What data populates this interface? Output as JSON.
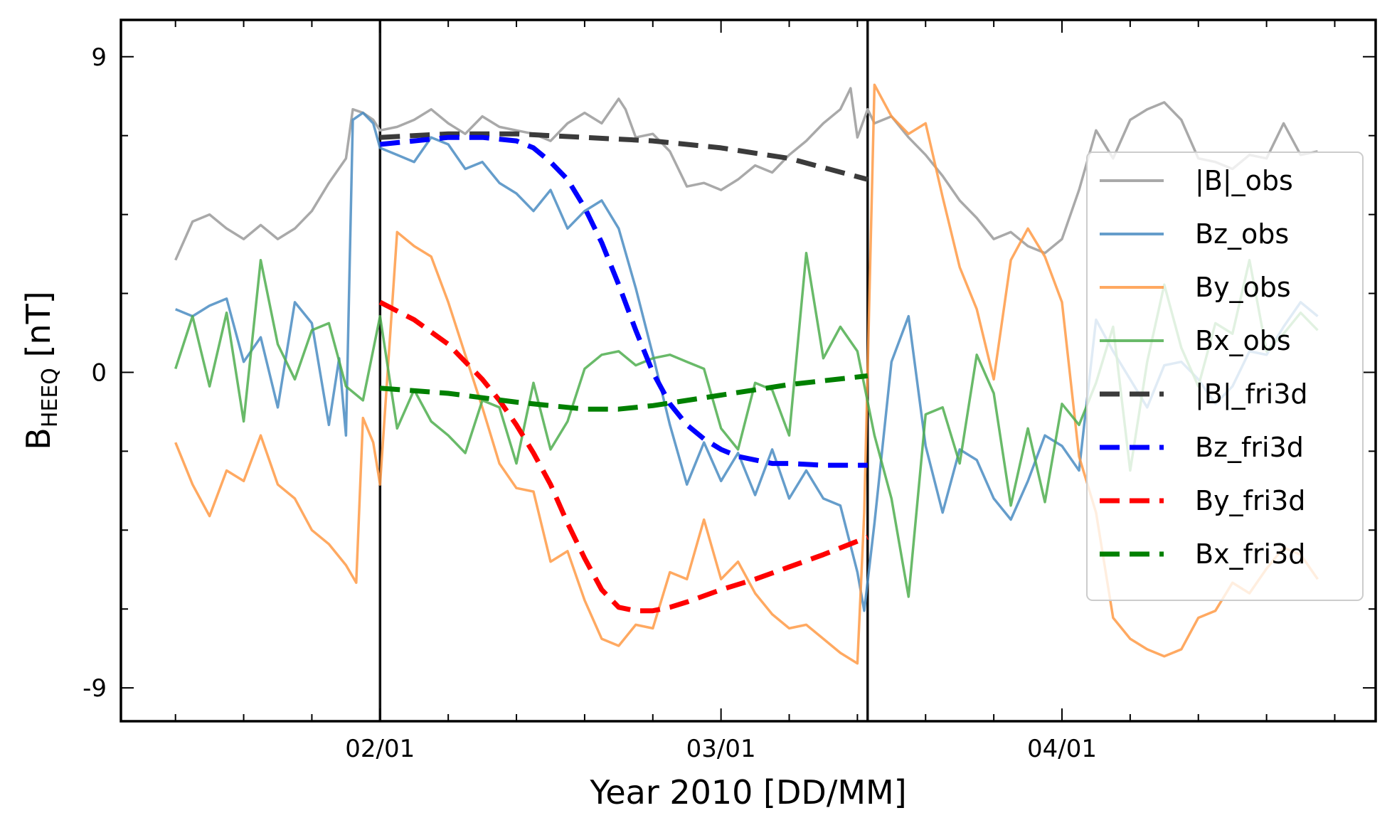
{
  "chart_data": {
    "type": "line",
    "title": "",
    "xlabel": "Year 2010 [DD/MM]",
    "ylabel": {
      "main": "B",
      "subscript": "HEEQ",
      "unit": " [nT]"
    },
    "x_unit": "day offset from 02/01 (0 = 02/01, 1 = 03/01, 2 = 04/01)",
    "xlim": [
      -0.76,
      2.92
    ],
    "ylim": [
      -9.95,
      10.05
    ],
    "x_ticks": [
      {
        "value": 0,
        "label": "02/01"
      },
      {
        "value": 1,
        "label": "03/01"
      },
      {
        "value": 2,
        "label": "04/01"
      }
    ],
    "y_ticks": [
      {
        "value": -9,
        "label": "-9"
      },
      {
        "value": 0,
        "label": "0"
      },
      {
        "value": 9,
        "label": "9"
      }
    ],
    "minor_x_step": 0.2,
    "minor_y_step": 2.25,
    "event_boundaries": [
      0,
      1.43
    ],
    "legend_position": "center-right",
    "series": [
      {
        "name": "|B|_obs",
        "color": "#a9a9a9",
        "style": "solid",
        "alpha": 1,
        "x": [
          -0.6,
          -0.55,
          -0.5,
          -0.45,
          -0.4,
          -0.35,
          -0.3,
          -0.25,
          -0.2,
          -0.15,
          -0.1,
          -0.08,
          -0.05,
          -0.02,
          0,
          0.05,
          0.1,
          0.15,
          0.2,
          0.25,
          0.3,
          0.35,
          0.4,
          0.45,
          0.5,
          0.55,
          0.6,
          0.65,
          0.7,
          0.72,
          0.75,
          0.8,
          0.85,
          0.9,
          0.95,
          1.0,
          1.05,
          1.1,
          1.15,
          1.2,
          1.25,
          1.3,
          1.35,
          1.38,
          1.4,
          1.43,
          1.45,
          1.5,
          1.55,
          1.6,
          1.65,
          1.7,
          1.75,
          1.8,
          1.85,
          1.9,
          1.95,
          2.0,
          2.05,
          2.1,
          2.15,
          2.2,
          2.25,
          2.3,
          2.35,
          2.4,
          2.45,
          2.5,
          2.55,
          2.6,
          2.65,
          2.7,
          2.75
        ],
        "y": [
          3.2,
          4.3,
          4.5,
          4.1,
          3.8,
          4.2,
          3.8,
          4.1,
          4.6,
          5.4,
          6.1,
          7.5,
          7.4,
          7.2,
          6.9,
          7.0,
          7.2,
          7.5,
          7.1,
          6.8,
          7.3,
          7.0,
          6.9,
          6.8,
          6.6,
          7.1,
          7.4,
          7.1,
          7.8,
          7.5,
          6.7,
          6.8,
          6.3,
          5.3,
          5.4,
          5.2,
          5.5,
          5.9,
          5.7,
          6.2,
          6.6,
          7.1,
          7.5,
          8.1,
          6.7,
          7.5,
          7.1,
          7.3,
          6.7,
          6.2,
          5.6,
          4.9,
          4.4,
          3.8,
          4.0,
          3.6,
          3.4,
          3.8,
          5.2,
          6.9,
          6.1,
          7.2,
          7.5,
          7.7,
          7.2,
          6.1,
          6.0,
          5.8,
          6.2,
          6.1,
          7.1,
          6.2,
          6.3
        ]
      },
      {
        "name": "Bz_obs",
        "color": "#4a8cc2",
        "style": "solid",
        "alpha": 0.85,
        "x": [
          -0.6,
          -0.55,
          -0.5,
          -0.45,
          -0.4,
          -0.35,
          -0.3,
          -0.25,
          -0.2,
          -0.15,
          -0.12,
          -0.1,
          -0.08,
          -0.05,
          -0.02,
          0,
          0.05,
          0.1,
          0.15,
          0.2,
          0.25,
          0.3,
          0.35,
          0.4,
          0.45,
          0.5,
          0.55,
          0.6,
          0.65,
          0.7,
          0.75,
          0.8,
          0.85,
          0.9,
          0.95,
          1.0,
          1.05,
          1.1,
          1.15,
          1.2,
          1.25,
          1.3,
          1.35,
          1.4,
          1.42,
          1.45,
          1.5,
          1.55,
          1.6,
          1.65,
          1.7,
          1.75,
          1.8,
          1.85,
          1.9,
          1.95,
          2.0,
          2.05,
          2.1,
          2.15,
          2.2,
          2.25,
          2.3,
          2.35,
          2.4,
          2.45,
          2.5,
          2.55,
          2.6,
          2.65,
          2.7,
          2.75
        ],
        "y": [
          1.8,
          1.6,
          1.9,
          2.1,
          0.3,
          1.0,
          -1.0,
          2.0,
          1.4,
          -1.5,
          0.4,
          -1.8,
          7.2,
          7.4,
          7.1,
          6.4,
          6.2,
          6.0,
          6.7,
          6.5,
          5.8,
          6.0,
          5.4,
          5.1,
          4.6,
          5.2,
          4.1,
          4.6,
          4.9,
          4.1,
          2.4,
          0.5,
          -1.5,
          -3.2,
          -2.0,
          -3.1,
          -2.3,
          -3.5,
          -2.2,
          -3.6,
          -2.8,
          -3.6,
          -3.8,
          -5.7,
          -6.8,
          -4.3,
          0.3,
          1.6,
          -2.1,
          -4.0,
          -2.2,
          -2.5,
          -3.6,
          -4.2,
          -3.1,
          -1.8,
          -2.1,
          -2.8,
          1.5,
          0.6,
          -0.2,
          -1.0,
          0.2,
          0.3,
          -0.2,
          -0.9,
          -0.4,
          0.6,
          0.5,
          1.3,
          2.0,
          1.6
        ]
      },
      {
        "name": "By_obs",
        "color": "#ff9a45",
        "style": "solid",
        "alpha": 0.85,
        "x": [
          -0.6,
          -0.55,
          -0.5,
          -0.45,
          -0.4,
          -0.35,
          -0.3,
          -0.25,
          -0.2,
          -0.15,
          -0.1,
          -0.07,
          -0.05,
          -0.02,
          0,
          0.05,
          0.1,
          0.15,
          0.2,
          0.25,
          0.3,
          0.35,
          0.4,
          0.45,
          0.5,
          0.55,
          0.6,
          0.65,
          0.7,
          0.75,
          0.8,
          0.85,
          0.9,
          0.95,
          1.0,
          1.05,
          1.1,
          1.15,
          1.2,
          1.25,
          1.3,
          1.35,
          1.4,
          1.42,
          1.45,
          1.5,
          1.55,
          1.6,
          1.65,
          1.7,
          1.75,
          1.8,
          1.85,
          1.9,
          1.95,
          2.0,
          2.05,
          2.1,
          2.15,
          2.2,
          2.25,
          2.3,
          2.35,
          2.4,
          2.45,
          2.5,
          2.55,
          2.6,
          2.65,
          2.7,
          2.75
        ],
        "y": [
          -2.0,
          -3.2,
          -4.1,
          -2.8,
          -3.1,
          -1.8,
          -3.2,
          -3.6,
          -4.5,
          -4.9,
          -5.5,
          -6.0,
          -1.3,
          -2.0,
          -3.2,
          4.0,
          3.6,
          3.3,
          2.0,
          0.5,
          -1.0,
          -2.6,
          -3.3,
          -3.4,
          -5.4,
          -5.1,
          -6.5,
          -7.6,
          -7.8,
          -7.2,
          -7.3,
          -5.7,
          -5.9,
          -4.2,
          -5.9,
          -5.4,
          -6.3,
          -6.9,
          -7.3,
          -7.2,
          -7.6,
          -8.0,
          -8.3,
          -4.0,
          8.2,
          7.3,
          6.8,
          7.1,
          5.0,
          3.0,
          1.8,
          -0.2,
          3.2,
          4.1,
          3.3,
          2.0,
          -2.4,
          -4.0,
          -7.0,
          -7.6,
          -7.9,
          -8.1,
          -7.9,
          -7.0,
          -6.8,
          -6.0,
          -6.3,
          -5.6,
          -5.0,
          -5.2,
          -5.9
        ]
      },
      {
        "name": "Bx_obs",
        "color": "#4fae4f",
        "style": "solid",
        "alpha": 0.85,
        "x": [
          -0.6,
          -0.55,
          -0.5,
          -0.45,
          -0.4,
          -0.35,
          -0.3,
          -0.25,
          -0.2,
          -0.15,
          -0.1,
          -0.05,
          0,
          0.05,
          0.1,
          0.15,
          0.2,
          0.25,
          0.3,
          0.35,
          0.4,
          0.45,
          0.5,
          0.55,
          0.6,
          0.65,
          0.7,
          0.75,
          0.8,
          0.85,
          0.9,
          0.95,
          1.0,
          1.05,
          1.1,
          1.15,
          1.2,
          1.25,
          1.3,
          1.35,
          1.4,
          1.45,
          1.5,
          1.55,
          1.6,
          1.65,
          1.7,
          1.75,
          1.8,
          1.85,
          1.9,
          1.95,
          2.0,
          2.05,
          2.1,
          2.15,
          2.2,
          2.25,
          2.3,
          2.35,
          2.4,
          2.45,
          2.5,
          2.55,
          2.6,
          2.65,
          2.7,
          2.75
        ],
        "y": [
          0.1,
          1.6,
          -0.4,
          1.7,
          -1.4,
          3.2,
          0.8,
          -0.2,
          1.2,
          1.4,
          -0.4,
          -0.8,
          1.6,
          -1.6,
          -0.5,
          -1.4,
          -1.8,
          -2.3,
          -0.8,
          -1.0,
          -2.6,
          -0.3,
          -2.2,
          -1.4,
          0.1,
          0.5,
          0.6,
          0.2,
          0.4,
          0.5,
          0.3,
          0.1,
          -1.6,
          -2.2,
          -0.3,
          -0.5,
          -1.8,
          3.4,
          0.4,
          1.3,
          0.6,
          -1.8,
          -3.6,
          -6.4,
          -1.2,
          -1.0,
          -2.6,
          0.5,
          -0.6,
          -3.8,
          -1.6,
          -3.7,
          -0.9,
          -1.5,
          -0.3,
          1.3,
          -2.8,
          0.3,
          2.5,
          0.7,
          -0.4,
          1.4,
          1.1,
          3.2,
          0.6,
          1.1,
          1.7,
          1.2
        ]
      },
      {
        "name": "|B|_fri3d",
        "color": "#3b3b3b",
        "style": "dashed",
        "alpha": 1,
        "x": [
          0,
          0.2,
          0.4,
          0.6,
          0.8,
          1.0,
          1.2,
          1.43
        ],
        "y": [
          6.7,
          6.8,
          6.8,
          6.7,
          6.6,
          6.4,
          6.1,
          5.5
        ]
      },
      {
        "name": "Bz_fri3d",
        "color": "#0000ff",
        "style": "dashed",
        "alpha": 1,
        "x": [
          0,
          0.1,
          0.2,
          0.3,
          0.4,
          0.45,
          0.5,
          0.55,
          0.6,
          0.65,
          0.7,
          0.75,
          0.8,
          0.85,
          0.9,
          0.95,
          1.0,
          1.05,
          1.1,
          1.15,
          1.2,
          1.3,
          1.43
        ],
        "y": [
          6.5,
          6.6,
          6.7,
          6.7,
          6.6,
          6.4,
          6.0,
          5.5,
          4.7,
          3.7,
          2.5,
          1.2,
          0.0,
          -0.9,
          -1.5,
          -1.9,
          -2.2,
          -2.4,
          -2.5,
          -2.6,
          -2.6,
          -2.65,
          -2.65
        ]
      },
      {
        "name": "By_fri3d",
        "color": "#ff0000",
        "style": "dashed",
        "alpha": 1,
        "x": [
          0,
          0.1,
          0.2,
          0.3,
          0.35,
          0.4,
          0.45,
          0.5,
          0.55,
          0.6,
          0.65,
          0.7,
          0.75,
          0.8,
          0.85,
          0.9,
          1.0,
          1.1,
          1.2,
          1.3,
          1.43
        ],
        "y": [
          2.0,
          1.5,
          0.8,
          -0.2,
          -0.8,
          -1.5,
          -2.3,
          -3.2,
          -4.3,
          -5.3,
          -6.2,
          -6.7,
          -6.8,
          -6.8,
          -6.7,
          -6.55,
          -6.2,
          -5.9,
          -5.55,
          -5.2,
          -4.7
        ]
      },
      {
        "name": "Bx_fri3d",
        "color": "#008000",
        "style": "dashed",
        "alpha": 1,
        "x": [
          0,
          0.2,
          0.4,
          0.6,
          0.7,
          0.8,
          1.0,
          1.2,
          1.43
        ],
        "y": [
          -0.45,
          -0.6,
          -0.85,
          -1.05,
          -1.05,
          -0.95,
          -0.65,
          -0.35,
          -0.1
        ]
      }
    ]
  }
}
